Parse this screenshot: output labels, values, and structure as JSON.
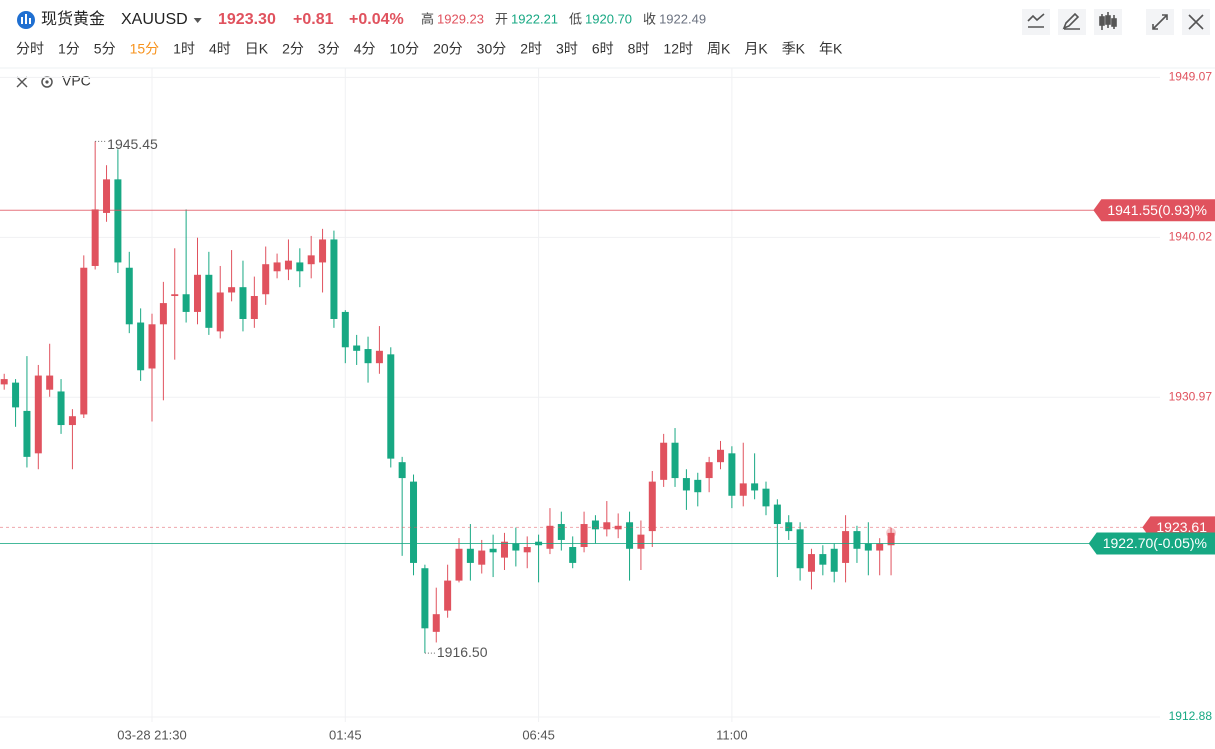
{
  "header": {
    "name": "现货黄金",
    "symbol": "XAUUSD",
    "price": "1923.30",
    "change": "+0.81",
    "change_pct": "+0.04%",
    "stats": [
      {
        "label": "高",
        "value": "1929.23",
        "color": "#e0525e"
      },
      {
        "label": "开",
        "value": "1922.21",
        "color": "#17a883"
      },
      {
        "label": "低",
        "value": "1920.70",
        "color": "#17a883"
      },
      {
        "label": "收",
        "value": "1922.49",
        "color": "#6b7280"
      }
    ]
  },
  "timeframes": [
    "分时",
    "1分",
    "5分",
    "15分",
    "1时",
    "4时",
    "日K",
    "2分",
    "3分",
    "4分",
    "10分",
    "20分",
    "30分",
    "2时",
    "3时",
    "6时",
    "8时",
    "12时",
    "周K",
    "月K",
    "季K",
    "年K"
  ],
  "active_timeframe": 3,
  "indicator": "VPC",
  "chart_data": {
    "type": "candlestick",
    "up_color": "#e0525e",
    "down_color": "#17a883",
    "categories": [
      null,
      null,
      null,
      null,
      null,
      null,
      null,
      null,
      null,
      null,
      null,
      null,
      null,
      "03-28 21:30",
      null,
      null,
      null,
      null,
      null,
      null,
      null,
      null,
      null,
      null,
      null,
      null,
      null,
      null,
      null,
      null,
      "01:45",
      null,
      null,
      null,
      null,
      null,
      null,
      null,
      null,
      null,
      null,
      null,
      null,
      null,
      null,
      null,
      null,
      "06:45",
      null,
      null,
      null,
      null,
      null,
      null,
      null,
      null,
      null,
      null,
      null,
      null,
      null,
      null,
      null,
      null,
      "11:00",
      null,
      null,
      null,
      null,
      null,
      null,
      null,
      null,
      null,
      null,
      null,
      null,
      null,
      null
    ],
    "open": [
      1931.7,
      1931.8,
      1930.2,
      1927.8,
      1931.4,
      1931.3,
      1929.4,
      1930.0,
      1938.4,
      1941.4,
      1943.3,
      1938.3,
      1935.2,
      1932.6,
      1935.1,
      1936.7,
      1936.8,
      1935.8,
      1937.9,
      1934.7,
      1936.9,
      1937.2,
      1935.4,
      1936.8,
      1938.1,
      1938.2,
      1938.6,
      1938.5,
      1938.6,
      1939.9,
      1935.8,
      1933.9,
      1933.7,
      1932.9,
      1933.4,
      1927.3,
      1926.2,
      1921.3,
      1917.7,
      1918.9,
      1920.6,
      1922.4,
      1921.5,
      1922.4,
      1921.9,
      1922.7,
      1922.2,
      1922.8,
      1922.4,
      1923.8,
      1922.5,
      1922.5,
      1924.0,
      1923.5,
      1923.5,
      1923.9,
      1922.4,
      1923.4,
      1926.3,
      1928.4,
      1926.4,
      1926.3,
      1926.4,
      1927.3,
      1927.8,
      1925.4,
      1926.1,
      1925.8,
      1924.9,
      1923.9,
      1923.5,
      1921.1,
      1922.1,
      1922.4,
      1921.6,
      1923.4,
      1922.7,
      1922.3,
      1922.6
    ],
    "high": [
      1932.3,
      1932.0,
      1933.3,
      1932.8,
      1934.0,
      1932.0,
      1930.3,
      1939.0,
      1945.45,
      1944.1,
      1945.0,
      1939.2,
      1936.0,
      1935.7,
      1937.5,
      1939.4,
      1941.6,
      1940.0,
      1939.2,
      1938.4,
      1939.3,
      1938.7,
      1937.8,
      1939.5,
      1939.1,
      1939.9,
      1939.4,
      1940.1,
      1940.5,
      1940.4,
      1935.9,
      1934.5,
      1934.4,
      1935.0,
      1933.8,
      1927.6,
      1926.6,
      1921.5,
      1920.2,
      1921.5,
      1923.0,
      1923.8,
      1922.9,
      1923.2,
      1923.3,
      1923.6,
      1923.1,
      1923.2,
      1924.7,
      1924.5,
      1923.1,
      1924.5,
      1924.3,
      1925.1,
      1924.4,
      1924.5,
      1924.0,
      1926.8,
      1928.9,
      1929.23,
      1926.9,
      1926.7,
      1927.6,
      1928.5,
      1928.2,
      1928.4,
      1927.8,
      1926.2,
      1925.2,
      1924.3,
      1923.9,
      1922.4,
      1922.6,
      1922.7,
      1924.3,
      1923.7,
      1923.9,
      1923.0,
      1923.6
    ],
    "low": [
      1931.4,
      1929.3,
      1927.0,
      1926.9,
      1931.0,
      1928.9,
      1926.9,
      1929.8,
      1938.2,
      1940.9,
      1938.0,
      1934.6,
      1931.9,
      1929.6,
      1930.8,
      1933.1,
      1935.2,
      1935.1,
      1934.5,
      1934.3,
      1936.4,
      1934.7,
      1934.9,
      1936.2,
      1937.7,
      1937.6,
      1937.2,
      1937.7,
      1936.9,
      1934.9,
      1932.9,
      1932.8,
      1931.8,
      1932.3,
      1927.0,
      1922.0,
      1920.9,
      1916.5,
      1917.1,
      1918.5,
      1920.5,
      1920.6,
      1921.0,
      1920.8,
      1921.2,
      1921.4,
      1921.3,
      1920.5,
      1922.1,
      1922.3,
      1921.3,
      1922.2,
      1922.7,
      1923.1,
      1923.0,
      1920.6,
      1921.2,
      1922.5,
      1925.9,
      1925.9,
      1924.6,
      1924.8,
      1925.6,
      1926.9,
      1924.7,
      1924.8,
      1925.2,
      1924.3,
      1920.8,
      1922.9,
      1920.6,
      1920.1,
      1920.9,
      1920.5,
      1920.5,
      1921.6,
      1920.9,
      1920.9,
      1920.9
    ],
    "close": [
      1932.0,
      1930.4,
      1927.6,
      1932.2,
      1932.2,
      1929.4,
      1929.9,
      1938.3,
      1941.6,
      1943.3,
      1938.6,
      1935.1,
      1932.5,
      1935.1,
      1936.3,
      1936.8,
      1935.8,
      1937.9,
      1934.9,
      1936.9,
      1937.2,
      1935.4,
      1936.7,
      1938.5,
      1938.6,
      1938.7,
      1938.1,
      1939.0,
      1939.9,
      1935.4,
      1933.8,
      1933.6,
      1932.9,
      1933.6,
      1927.5,
      1926.4,
      1921.6,
      1917.9,
      1918.7,
      1920.6,
      1922.4,
      1921.6,
      1922.3,
      1922.2,
      1922.8,
      1922.3,
      1922.5,
      1922.6,
      1923.7,
      1922.9,
      1921.6,
      1923.8,
      1923.5,
      1923.9,
      1923.7,
      1922.4,
      1923.2,
      1926.2,
      1928.4,
      1926.4,
      1925.7,
      1925.6,
      1927.3,
      1928.0,
      1925.4,
      1926.1,
      1925.7,
      1924.8,
      1923.8,
      1923.4,
      1921.3,
      1922.1,
      1921.5,
      1921.1,
      1923.4,
      1922.4,
      1922.3,
      1922.7,
      1923.3
    ],
    "ylim": [
      1912.6,
      1949.6
    ],
    "yticks": [
      1912.88,
      1930.97,
      1940.02,
      1949.07
    ],
    "grid": true,
    "price_lines": [
      {
        "value": 1941.55,
        "label": "1941.55(0.93)%",
        "color": "#e0525e",
        "dashed": false
      },
      {
        "value": 1923.61,
        "label": "1923.61",
        "color": "#e0525e",
        "dashed": true
      },
      {
        "value": 1922.7,
        "label": "1922.70(-0.05)%",
        "color": "#17a883",
        "dashed": false
      }
    ],
    "annotations": [
      {
        "value": 1945.45,
        "label": "1945.45"
      },
      {
        "value": 1916.5,
        "label": "1916.50"
      }
    ]
  }
}
